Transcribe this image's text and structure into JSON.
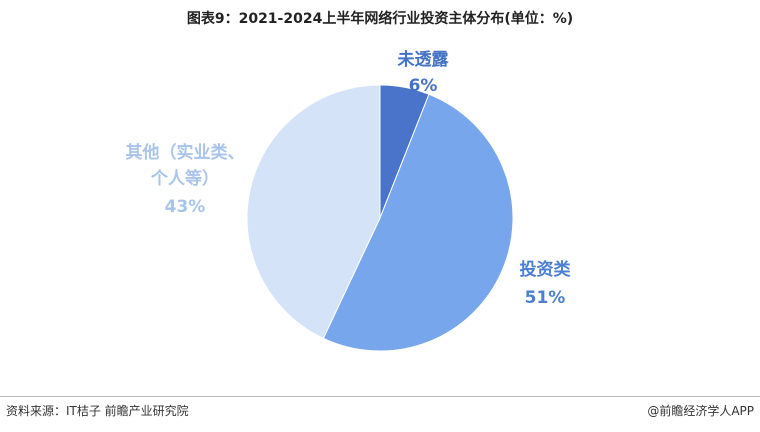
{
  "chart_data": {
    "type": "pie",
    "title": "图表9：2021-2024上半年网络行业投资主体分布(单位：%)",
    "categories": [
      "未透露",
      "投资类",
      "其他（实业类、个人等）"
    ],
    "values": [
      6,
      51,
      43
    ],
    "value_labels": [
      "6%",
      "51%",
      "43%"
    ],
    "colors": [
      "#4a74c9",
      "#78a6ec",
      "#d5e3f8"
    ],
    "label_colors": [
      "#4472c4",
      "#4a7fd1",
      "#a9c4ea"
    ],
    "source": "资料来源：IT桔子 前瞻产业研究院",
    "credit": "@前瞻经济学人APP"
  }
}
